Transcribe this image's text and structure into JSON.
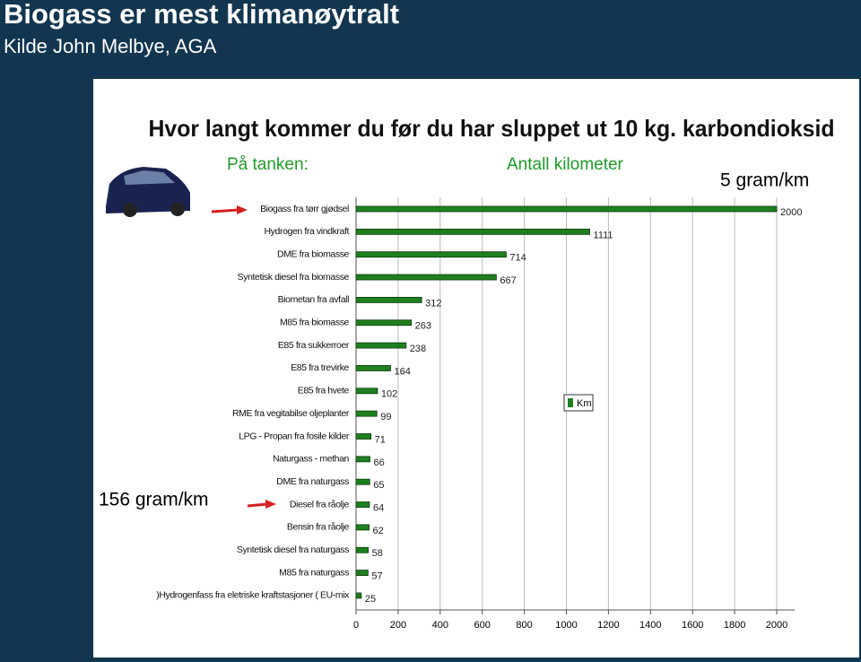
{
  "slide": {
    "title": "Biogass er mest klimanøytralt",
    "source": "Kilde John Melbye, AGA"
  },
  "chart_data": {
    "type": "hbar",
    "title": "Hvor langt kommer du før du har sluppet ut 10 kg. karbondioksid",
    "subtitle": "På tanken:",
    "xlabel": "Antall kilometer",
    "annotations": [
      "5 gram/km",
      "156 gram/km"
    ],
    "categories": [
      "Biogass fra tørr gjødsel",
      "Hydrogen fra vindkraft",
      "DME fra biomasse",
      "Syntetisk diesel fra biomasse",
      "Biometan fra avfall",
      "M85 fra biomasse",
      "E85 fra sukkerroer",
      "E85 fra trevirke",
      "E85 fra hvete",
      "RME fra vegitabilse oljeplanter",
      "LPG - Propan fra fosile kilder",
      "Naturgass - methan",
      "DME fra naturgass",
      "Diesel fra råolje",
      "Bensin fra råolje",
      "Syntetisk diesel fra naturgass",
      "M85 fra naturgass",
      ")Hydrogenfass fra eletriske kraftstasjoner ( EU-mix"
    ],
    "series": [
      {
        "name": "Km",
        "color": "#1f7f1f",
        "values": [
          2000,
          1111,
          714,
          667,
          312,
          263,
          238,
          164,
          102,
          99,
          71,
          66,
          65,
          64,
          62,
          58,
          57,
          25
        ]
      }
    ],
    "xlim": [
      0,
      2000
    ],
    "xticks": [
      0,
      200,
      400,
      600,
      800,
      1000,
      1200,
      1400,
      1600,
      1800,
      2000
    ],
    "grid": true,
    "legend": "right"
  }
}
